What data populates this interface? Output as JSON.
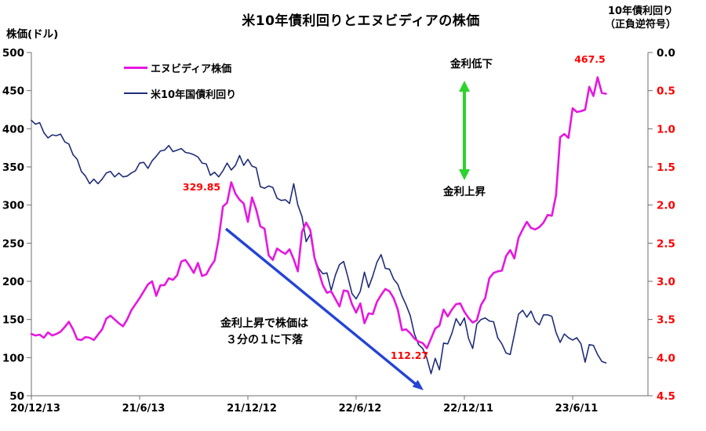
{
  "header": {
    "title": "米10年債利回りとエヌビディアの株価",
    "left_axis_title": "株価(ドル)",
    "right_axis_title_line1": "10年債利回り",
    "right_axis_title_line2": "（正負逆符号）"
  },
  "legend": {
    "items": [
      {
        "label": "エヌビディア株価",
        "color": "#E617E0"
      },
      {
        "label": "米10年国債利回り",
        "color": "#1F2D78"
      }
    ]
  },
  "annotations": {
    "peak_2021_label": "329.85",
    "peak_2023_label": "467.5",
    "trough_2022_label": "112.27",
    "rate_down_label": "金利低下",
    "rate_up_label": "金利上昇",
    "note_line1": "金利上昇で株価は",
    "note_line2": "３分の１に下落",
    "data_label_color": "#FF0000",
    "green_arrow_color": "#2BD42B",
    "blue_arrow_color": "#2444D6"
  },
  "chart_data": {
    "type": "line",
    "title": "米10年債利回りとエヌビディアの株価",
    "grid": false,
    "legend_position": "top-left-inside",
    "x_tick_labels": [
      "20/12/13",
      "21/6/13",
      "21/12/12",
      "22/6/12",
      "22/12/11",
      "23/6/11"
    ],
    "x_tick_indices": [
      0,
      26,
      52,
      78,
      104,
      130
    ],
    "x_frequency": "weekly",
    "left_axis": {
      "title": "株価(ドル)",
      "range": [
        50,
        500
      ],
      "ticks": [
        500,
        450,
        400,
        350,
        300,
        250,
        200,
        150,
        100,
        50
      ],
      "tick_color": "#000000"
    },
    "right_axis": {
      "title": "10年債利回り（正負逆符号）",
      "range": [
        0.0,
        4.5
      ],
      "ticks": [
        "0.0",
        "0.5",
        "1.0",
        "1.5",
        "2.0",
        "2.5",
        "3.0",
        "3.5",
        "4.0",
        "4.5"
      ],
      "inverted": true,
      "tick_color": "#FF0000",
      "zero_tick_color": "#000000"
    },
    "series": [
      {
        "name": "エヌビディア株価",
        "axis": "left",
        "color": "#E617E0",
        "width": 2.6,
        "values": [
          131,
          129,
          130,
          126,
          133,
          129,
          131,
          134,
          140,
          147,
          137,
          124,
          123,
          127,
          126,
          123,
          130,
          137,
          151,
          155,
          150,
          145,
          141,
          150,
          162,
          170,
          178,
          187,
          196,
          200,
          181,
          195,
          195,
          204,
          202,
          208,
          226,
          228,
          220,
          211,
          224,
          207,
          209,
          219,
          227,
          256,
          298,
          303,
          329.85,
          315,
          307,
          302,
          278,
          310,
          294,
          272,
          269,
          234,
          228,
          243,
          239,
          236,
          242,
          229,
          213,
          265,
          277,
          267,
          231,
          213,
          195,
          185,
          187,
          177,
          167,
          188,
          187,
          170,
          159,
          171,
          145,
          158,
          157,
          173,
          182,
          190,
          187,
          178,
          163,
          136,
          137,
          132,
          125,
          121,
          119,
          112.27,
          125,
          138,
          142,
          163,
          154,
          163,
          170,
          171,
          160,
          152,
          146,
          149,
          169,
          178,
          204,
          211,
          213,
          214,
          233,
          241,
          230,
          257,
          268,
          278,
          270,
          268,
          271,
          277,
          287,
          286,
          313,
          389,
          393,
          388,
          427,
          422,
          423,
          425,
          455,
          443,
          467.5,
          447,
          446
        ]
      },
      {
        "name": "米10年国債利回り",
        "axis": "right",
        "color": "#1F2D78",
        "width": 1.6,
        "values": [
          0.89,
          0.94,
          0.92,
          1.05,
          1.12,
          1.08,
          1.09,
          1.07,
          1.17,
          1.2,
          1.34,
          1.4,
          1.56,
          1.62,
          1.72,
          1.66,
          1.72,
          1.66,
          1.58,
          1.56,
          1.63,
          1.58,
          1.63,
          1.62,
          1.58,
          1.55,
          1.45,
          1.44,
          1.52,
          1.42,
          1.36,
          1.29,
          1.28,
          1.22,
          1.3,
          1.28,
          1.26,
          1.31,
          1.32,
          1.34,
          1.37,
          1.45,
          1.46,
          1.61,
          1.57,
          1.63,
          1.55,
          1.45,
          1.54,
          1.48,
          1.35,
          1.48,
          1.4,
          1.49,
          1.51,
          1.76,
          1.78,
          1.75,
          1.77,
          1.91,
          1.94,
          1.93,
          1.98,
          1.72,
          2.0,
          2.15,
          2.48,
          2.38,
          2.7,
          2.83,
          2.9,
          2.89,
          3.12,
          2.92,
          2.78,
          2.74,
          2.94,
          3.16,
          3.23,
          3.13,
          2.88,
          3.08,
          2.93,
          2.75,
          2.65,
          2.83,
          2.84,
          2.97,
          3.04,
          3.19,
          3.31,
          3.45,
          3.69,
          3.83,
          3.88,
          4.01,
          4.21,
          4.01,
          4.16,
          3.81,
          3.82,
          3.68,
          3.49,
          3.58,
          3.48,
          3.75,
          3.88,
          3.56,
          3.5,
          3.48,
          3.52,
          3.53,
          3.74,
          3.82,
          3.94,
          3.96,
          3.7,
          3.43,
          3.38,
          3.47,
          3.39,
          3.52,
          3.57,
          3.44,
          3.44,
          3.46,
          3.67,
          3.8,
          3.69,
          3.74,
          3.77,
          3.74,
          3.82,
          4.06,
          3.83,
          3.84,
          3.96,
          4.05,
          4.07
        ]
      }
    ],
    "point_annotations": [
      {
        "series": "エヌビディア株価",
        "text": "329.85",
        "meaning": "2021-11 peak"
      },
      {
        "series": "エヌビディア株価",
        "text": "112.27",
        "meaning": "2022-10 trough"
      },
      {
        "series": "エヌビディア株価",
        "text": "467.5",
        "meaning": "2023 peak"
      }
    ]
  }
}
